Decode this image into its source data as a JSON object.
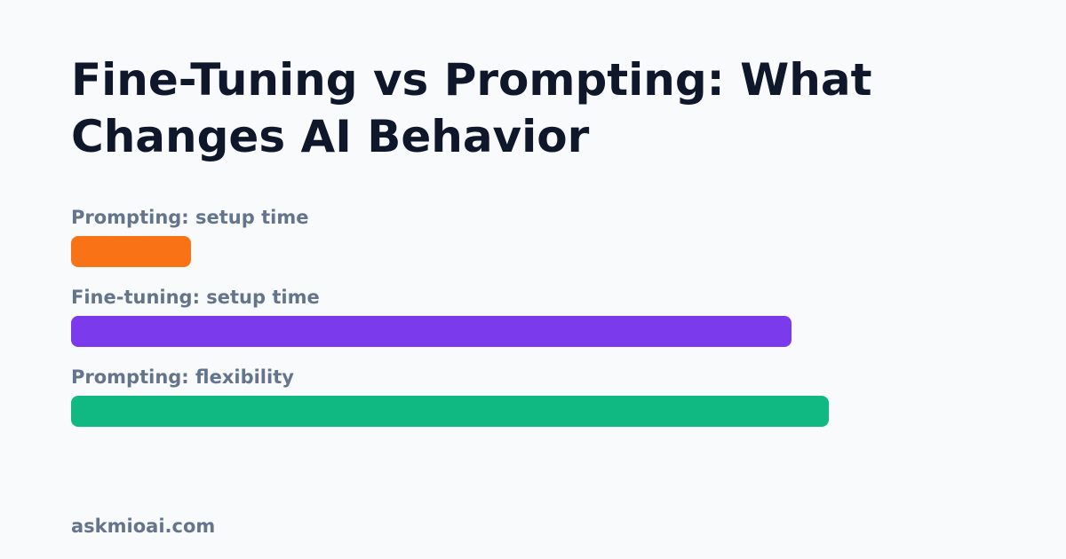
{
  "title": "Fine-Tuning vs Prompting: What Changes AI Behavior",
  "footer": "askmioai.com",
  "chart_data": {
    "type": "bar",
    "orientation": "horizontal",
    "title": "Fine-Tuning vs Prompting: What Changes AI Behavior",
    "xlabel": "",
    "ylabel": "",
    "xlim": [
      0,
      100
    ],
    "grid": false,
    "categories": [
      "Prompting: setup time",
      "Fine-tuning: setup time",
      "Prompting: flexibility"
    ],
    "values": [
      13,
      78,
      82
    ],
    "colors": [
      "#f97316",
      "#7c3aed",
      "#10b981"
    ]
  }
}
